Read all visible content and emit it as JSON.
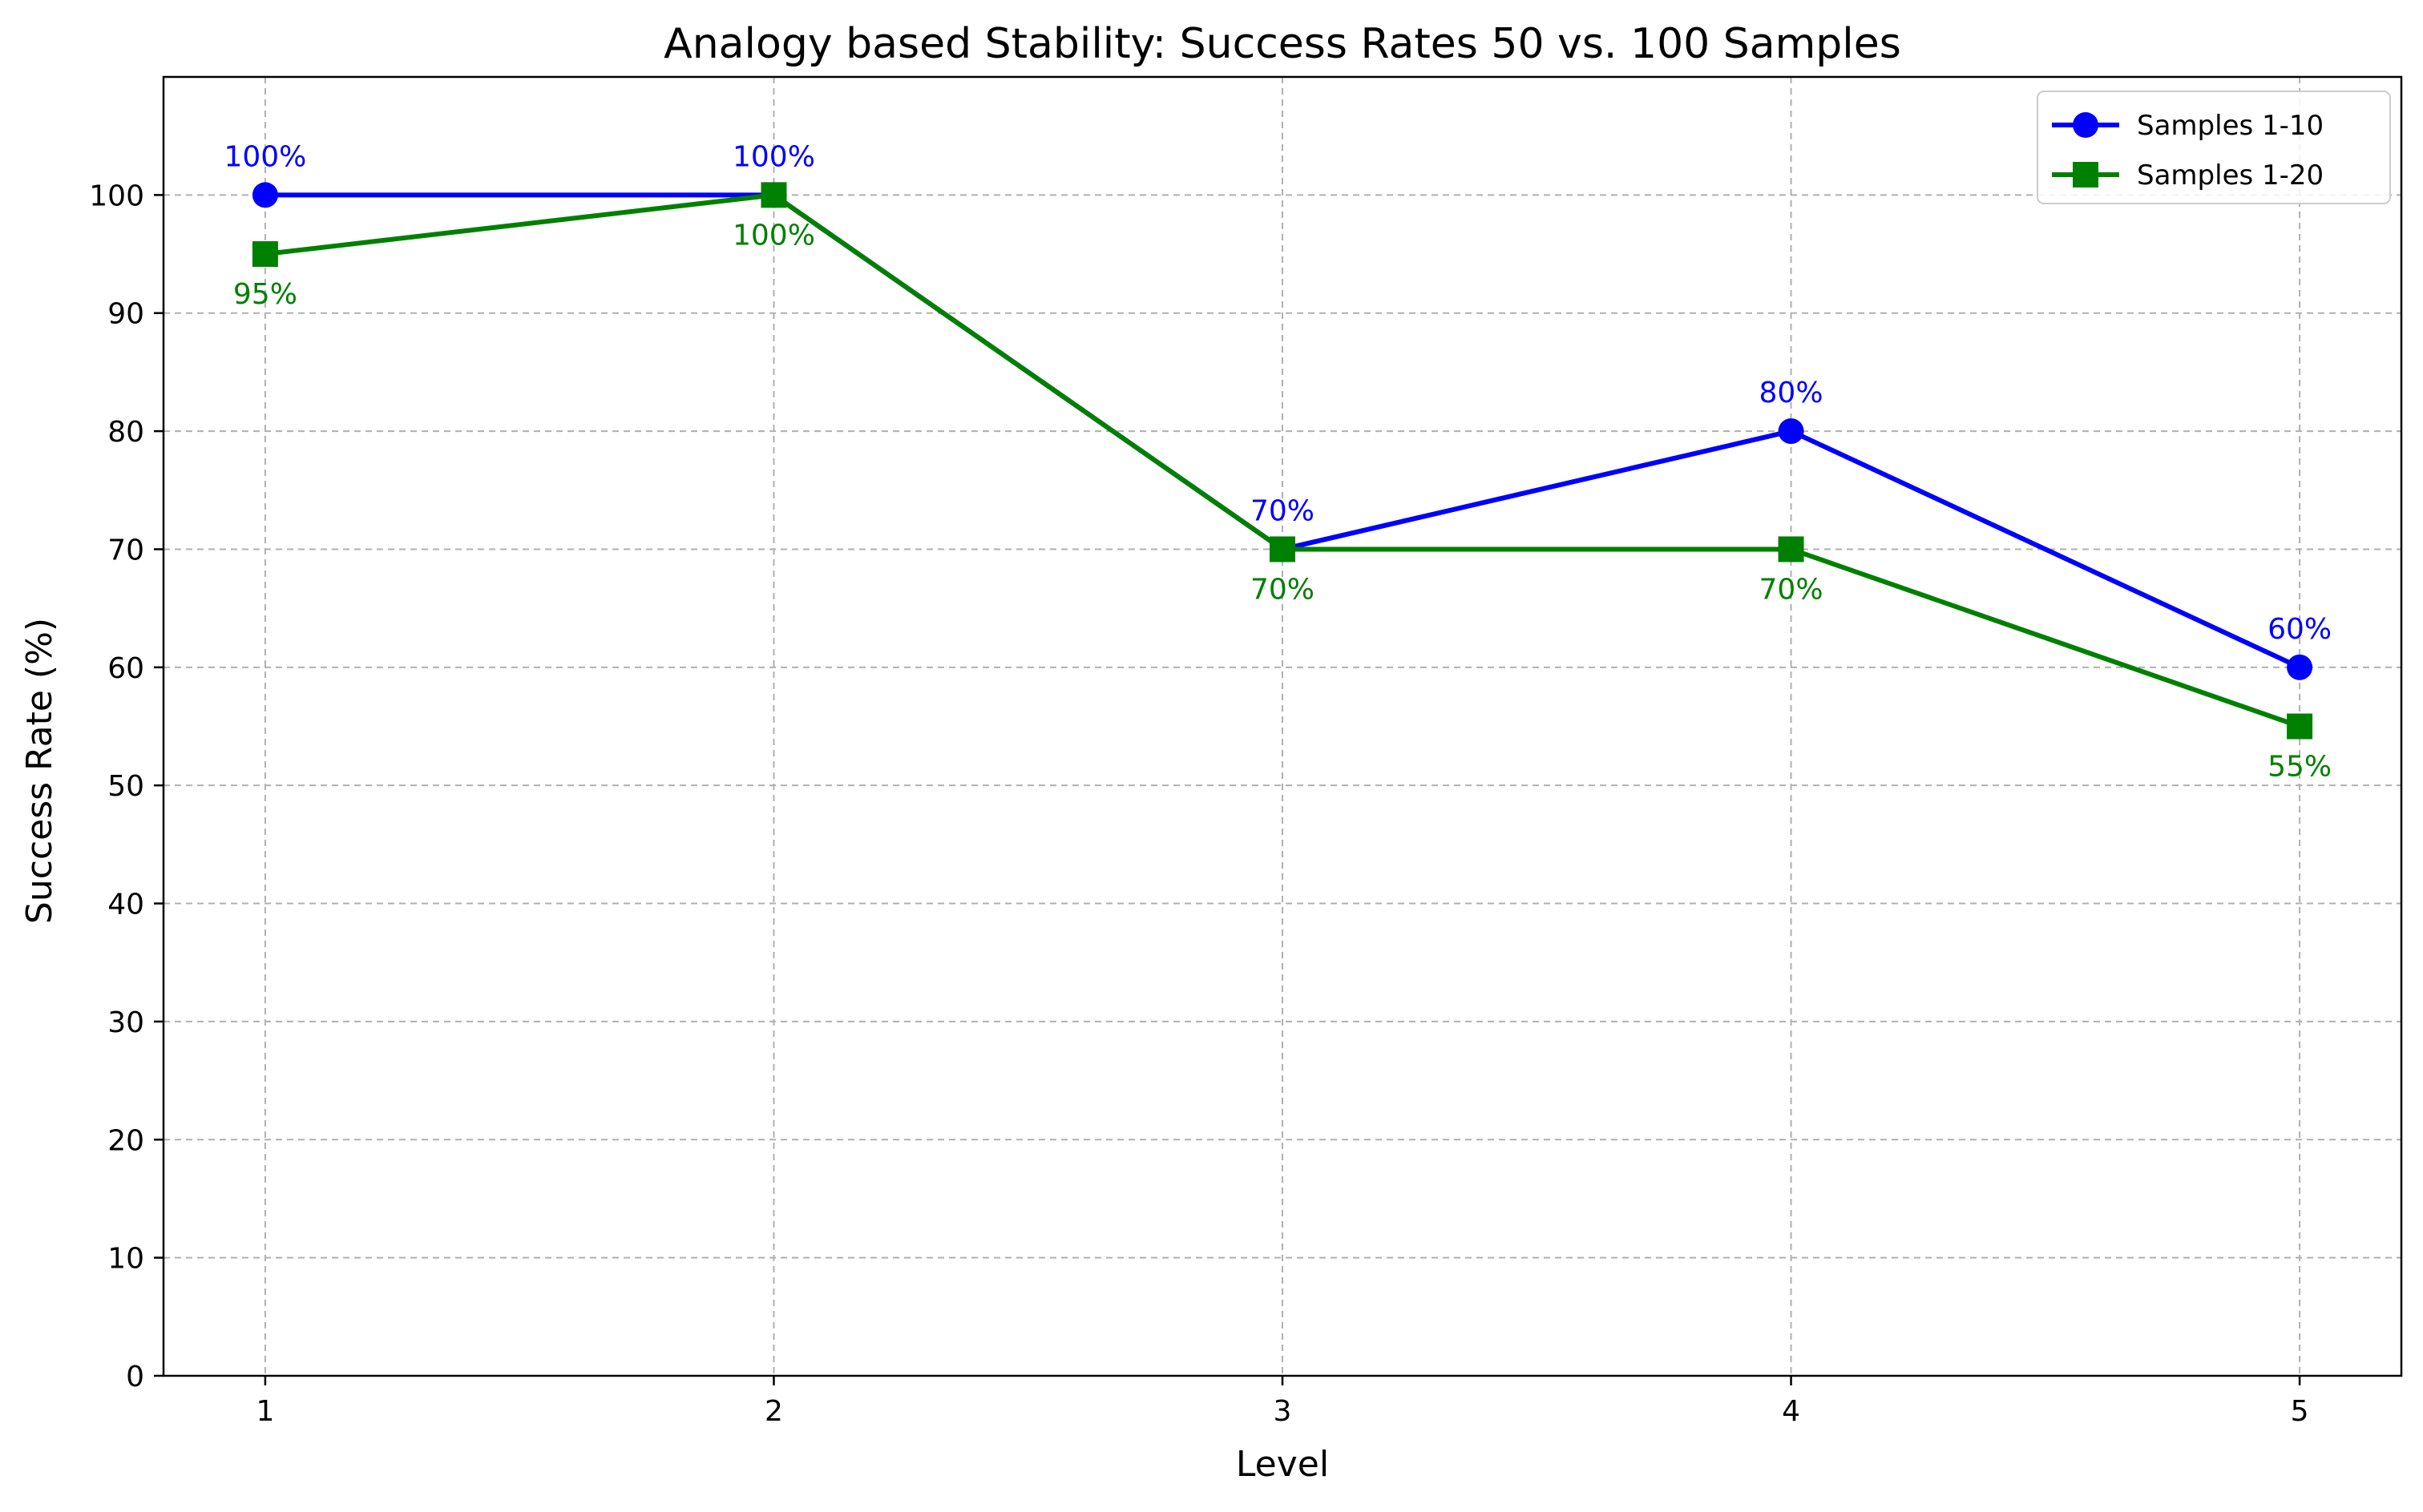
{
  "chart_data": {
    "type": "line",
    "title": "Analogy based Stability: Success Rates 50 vs. 100 Samples",
    "xlabel": "Level",
    "ylabel": "Success Rate (%)",
    "x": [
      1,
      2,
      3,
      4,
      5
    ],
    "xlim": [
      0.8,
      5.2
    ],
    "ylim": [
      0,
      110
    ],
    "yticks": [
      0,
      10,
      20,
      30,
      40,
      50,
      60,
      70,
      80,
      90,
      100
    ],
    "grid": true,
    "legend_position": "top-right",
    "series": [
      {
        "name": "Samples 1-10",
        "values": [
          100,
          100,
          70,
          80,
          60
        ],
        "labels": [
          "100%",
          "100%",
          "70%",
          "80%",
          "60%"
        ],
        "color": "#0000ff",
        "marker": "circle",
        "label_position": "above"
      },
      {
        "name": "Samples 1-20",
        "values": [
          95,
          100,
          70,
          70,
          55
        ],
        "labels": [
          "95%",
          "100%",
          "70%",
          "70%",
          "55%"
        ],
        "color": "#008000",
        "marker": "square",
        "label_position": "below"
      }
    ]
  }
}
